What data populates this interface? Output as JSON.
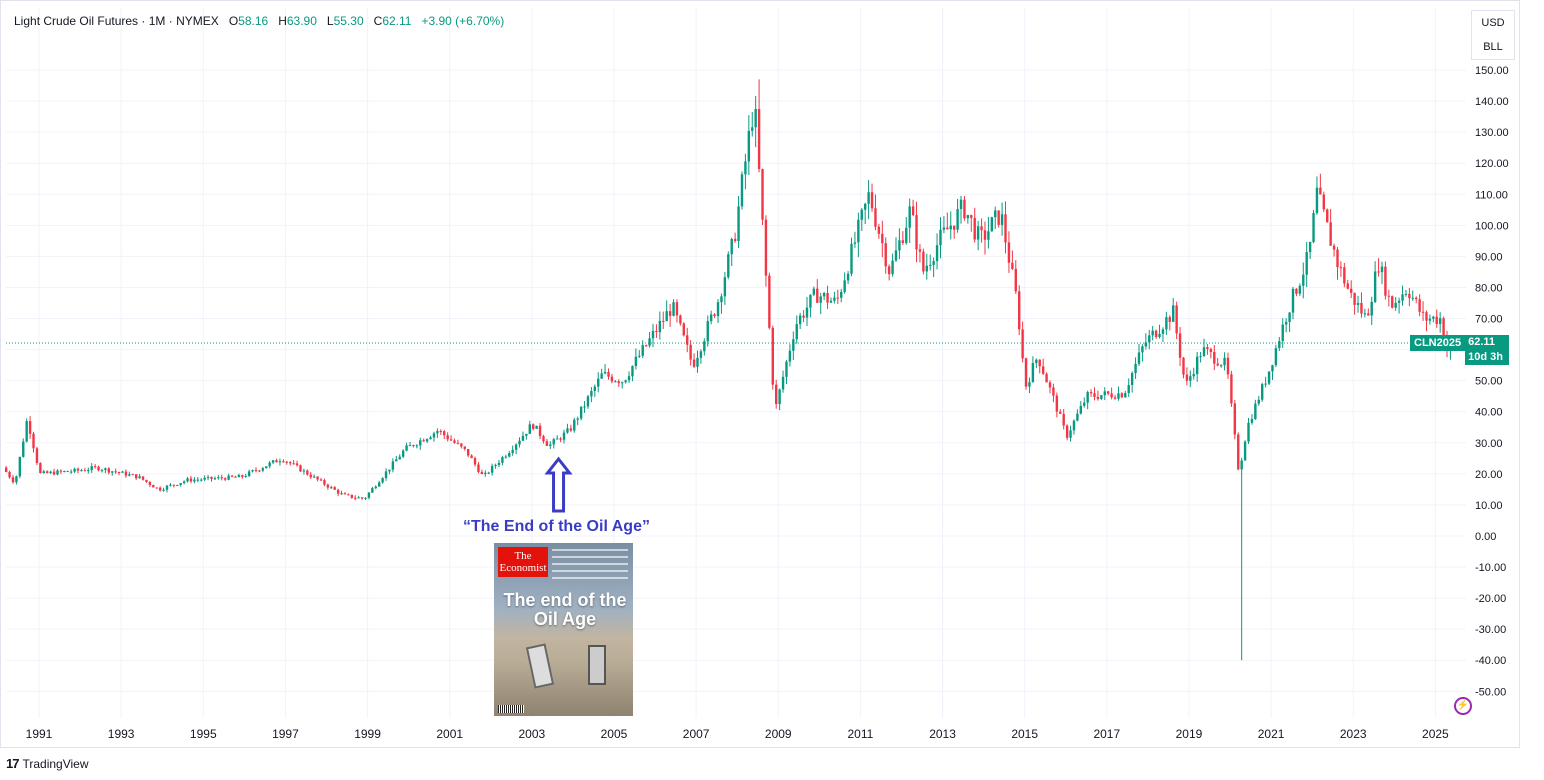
{
  "legend": {
    "symbol_name": "Light Crude Oil Futures",
    "interval": "1M",
    "exchange": "NYMEX",
    "open_label": "O",
    "open": "58.16",
    "high_label": "H",
    "high": "63.90",
    "low_label": "L",
    "low": "55.30",
    "close_label": "C",
    "close": "62.11",
    "change": "+3.90 (+6.70%)"
  },
  "currency": {
    "currency": "USD",
    "unit": "BLL"
  },
  "price_tag": {
    "symbol": "CLN2025",
    "price": "62.11",
    "countdown": "10d 3h"
  },
  "annotation": {
    "text": "“The End of the Oil Age”"
  },
  "cover": {
    "masthead": "The Economist",
    "headline": "The end of the Oil Age"
  },
  "footer": {
    "logo": "17",
    "brand": "TradingView"
  },
  "colors": {
    "up": "#089981",
    "down": "#f23645",
    "grid": "#f0f3fa",
    "price_line": "#089981",
    "annotation": "#3a3dc4"
  },
  "icons": [
    "tradingview-logo-icon",
    "up-arrow-icon",
    "lightning-icon"
  ],
  "chart_data": {
    "type": "candlestick",
    "title": "",
    "interval": "1M",
    "y_axis": {
      "min": -55,
      "max": 155,
      "ticks": [
        150,
        140,
        130,
        120,
        110,
        100,
        90,
        80,
        70,
        60,
        50,
        40,
        30,
        20,
        10,
        0,
        -10,
        -20,
        -30,
        -40,
        -50
      ],
      "tick_labels": [
        "150.00",
        "140.00",
        "130.00",
        "120.00",
        "110.00",
        "100.00",
        "90.00",
        "80.00",
        "70.00",
        "60.00",
        "50.00",
        "40.00",
        "30.00",
        "20.00",
        "10.00",
        "0.00",
        "-10.00",
        "-20.00",
        "-30.00",
        "-40.00",
        "-50.00"
      ]
    },
    "x_axis": {
      "min": 1990.2,
      "max": 2025.6,
      "tick_values": [
        1991,
        1993,
        1995,
        1997,
        1999,
        2001,
        2003,
        2005,
        2007,
        2009,
        2011,
        2013,
        2015,
        2017,
        2019,
        2021,
        2023,
        2025
      ],
      "tick_labels": [
        "1991",
        "1993",
        "1995",
        "1997",
        "1999",
        "2001",
        "2003",
        "2005",
        "2007",
        "2009",
        "2011",
        "2013",
        "2015",
        "2017",
        "2019",
        "2021",
        "2023",
        "2025"
      ]
    },
    "current_price": 62.11,
    "series_anchor_points": [
      {
        "t": 1990.2,
        "p": 22
      },
      {
        "t": 1990.5,
        "p": 17
      },
      {
        "t": 1990.8,
        "p": 38
      },
      {
        "t": 1991.1,
        "p": 20
      },
      {
        "t": 1992.0,
        "p": 21
      },
      {
        "t": 1992.5,
        "p": 22
      },
      {
        "t": 1993.5,
        "p": 19
      },
      {
        "t": 1994.0,
        "p": 15
      },
      {
        "t": 1994.7,
        "p": 18
      },
      {
        "t": 1996.0,
        "p": 19
      },
      {
        "t": 1997.0,
        "p": 25
      },
      {
        "t": 1997.5,
        "p": 21
      },
      {
        "t": 1998.5,
        "p": 13
      },
      {
        "t": 1999.0,
        "p": 12
      },
      {
        "t": 2000.0,
        "p": 28
      },
      {
        "t": 2000.8,
        "p": 34
      },
      {
        "t": 2001.5,
        "p": 27
      },
      {
        "t": 2001.9,
        "p": 19
      },
      {
        "t": 2002.5,
        "p": 27
      },
      {
        "t": 2003.1,
        "p": 36
      },
      {
        "t": 2003.5,
        "p": 29
      },
      {
        "t": 2004.0,
        "p": 34
      },
      {
        "t": 2004.8,
        "p": 52
      },
      {
        "t": 2005.3,
        "p": 50
      },
      {
        "t": 2006.5,
        "p": 74
      },
      {
        "t": 2007.0,
        "p": 55
      },
      {
        "t": 2007.6,
        "p": 75
      },
      {
        "t": 2008.0,
        "p": 95
      },
      {
        "t": 2008.5,
        "p": 140
      },
      {
        "t": 2008.8,
        "p": 80
      },
      {
        "t": 2009.0,
        "p": 40
      },
      {
        "t": 2009.5,
        "p": 68
      },
      {
        "t": 2010.0,
        "p": 78
      },
      {
        "t": 2010.5,
        "p": 75
      },
      {
        "t": 2011.3,
        "p": 110
      },
      {
        "t": 2011.8,
        "p": 85
      },
      {
        "t": 2012.3,
        "p": 105
      },
      {
        "t": 2012.6,
        "p": 85
      },
      {
        "t": 2013.0,
        "p": 95
      },
      {
        "t": 2013.6,
        "p": 106
      },
      {
        "t": 2014.0,
        "p": 95
      },
      {
        "t": 2014.5,
        "p": 104
      },
      {
        "t": 2014.9,
        "p": 75
      },
      {
        "t": 2015.1,
        "p": 48
      },
      {
        "t": 2015.4,
        "p": 58
      },
      {
        "t": 2015.9,
        "p": 40
      },
      {
        "t": 2016.1,
        "p": 32
      },
      {
        "t": 2016.6,
        "p": 45
      },
      {
        "t": 2017.5,
        "p": 46
      },
      {
        "t": 2018.0,
        "p": 62
      },
      {
        "t": 2018.7,
        "p": 72
      },
      {
        "t": 2019.0,
        "p": 48
      },
      {
        "t": 2019.4,
        "p": 60
      },
      {
        "t": 2020.0,
        "p": 55
      },
      {
        "t": 2020.3,
        "p": 20
      },
      {
        "t": 2020.5,
        "p": 35
      },
      {
        "t": 2021.0,
        "p": 52
      },
      {
        "t": 2021.5,
        "p": 73
      },
      {
        "t": 2022.0,
        "p": 90
      },
      {
        "t": 2022.2,
        "p": 110
      },
      {
        "t": 2022.7,
        "p": 88
      },
      {
        "t": 2023.0,
        "p": 78
      },
      {
        "t": 2023.4,
        "p": 70
      },
      {
        "t": 2023.7,
        "p": 88
      },
      {
        "t": 2024.0,
        "p": 74
      },
      {
        "t": 2024.4,
        "p": 80
      },
      {
        "t": 2024.8,
        "p": 70
      },
      {
        "t": 2025.2,
        "p": 70
      },
      {
        "t": 2025.4,
        "p": 58
      },
      {
        "t": 2025.5,
        "p": 62.11
      }
    ],
    "notable_extremes": [
      {
        "t": 2008.5,
        "high": 147,
        "low": 140
      },
      {
        "t": 2020.3,
        "high": 25,
        "low": -40
      }
    ],
    "annotation": {
      "t": 2003.65,
      "p": 25,
      "label": "“The End of the Oil Age”"
    }
  }
}
